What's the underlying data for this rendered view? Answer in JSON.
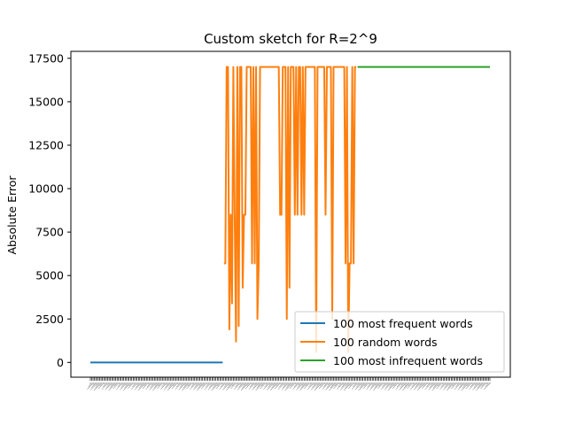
{
  "chart_data": {
    "type": "line",
    "title": "Custom sketch for R=2^9",
    "ylabel": "Absolute Error",
    "xlabel": "",
    "ylim": [
      -850,
      17900
    ],
    "yticks": [
      0,
      2500,
      5000,
      7500,
      10000,
      12500,
      15000,
      17500
    ],
    "grid": false,
    "legend_position": "lower-right",
    "colors": {
      "frequent": "#1f77b4",
      "random": "#ff7f0e",
      "infrequent": "#2ca02c"
    },
    "series": [
      {
        "name": "100 most frequent words",
        "values": [
          0,
          0,
          0,
          0,
          0,
          0,
          0,
          0,
          0,
          0,
          0,
          0,
          0,
          0,
          0,
          0,
          0,
          0,
          0,
          0,
          0,
          0,
          0,
          0,
          0,
          0,
          0,
          0,
          0,
          0,
          0,
          0,
          0,
          0,
          0,
          0,
          0,
          0,
          0,
          0,
          0,
          0,
          0,
          0,
          0,
          0,
          0,
          0,
          0,
          0,
          0,
          0,
          0,
          0,
          0,
          0,
          0,
          0,
          0,
          0,
          0,
          0,
          0,
          0,
          0,
          0,
          0,
          0,
          0,
          0,
          0,
          0,
          0,
          0,
          0,
          0,
          0,
          0,
          0,
          0,
          0,
          0,
          0,
          0,
          0,
          0,
          0,
          0,
          0,
          0,
          0,
          0,
          0,
          0,
          0,
          0,
          0,
          0,
          0,
          0
        ]
      },
      {
        "name": "100 random words",
        "values": [
          5700,
          5700,
          17000,
          17000,
          1900,
          8500,
          3400,
          17000,
          8500,
          1200,
          17000,
          2100,
          17000,
          17000,
          4300,
          8500,
          8500,
          17000,
          17000,
          17000,
          17000,
          5700,
          17000,
          5700,
          17000,
          2500,
          5700,
          17000,
          17000,
          17000,
          17000,
          17000,
          17000,
          17000,
          17000,
          17000,
          17000,
          17000,
          17000,
          17000,
          17000,
          17000,
          8500,
          8500,
          17000,
          17000,
          17000,
          2500,
          17000,
          4300,
          17000,
          17000,
          17000,
          8500,
          17000,
          8500,
          17000,
          17000,
          8500,
          17000,
          8500,
          17000,
          17000,
          17000,
          17000,
          17000,
          17000,
          17000,
          17000,
          600,
          17000,
          17000,
          17000,
          17000,
          17000,
          17000,
          8500,
          17000,
          17000,
          17000,
          17000,
          2500,
          17000,
          17000,
          17000,
          17000,
          17000,
          17000,
          17000,
          17000,
          17000,
          5700,
          17000,
          600,
          5700,
          5700,
          17000,
          5700,
          17000,
          17000
        ]
      },
      {
        "name": "100 most infrequent words",
        "values": [
          17000,
          17000,
          17000,
          17000,
          17000,
          17000,
          17000,
          17000,
          17000,
          17000,
          17000,
          17000,
          17000,
          17000,
          17000,
          17000,
          17000,
          17000,
          17000,
          17000,
          17000,
          17000,
          17000,
          17000,
          17000,
          17000,
          17000,
          17000,
          17000,
          17000,
          17000,
          17000,
          17000,
          17000,
          17000,
          17000,
          17000,
          17000,
          17000,
          17000,
          17000,
          17000,
          17000,
          17000,
          17000,
          17000,
          17000,
          17000,
          17000,
          17000,
          17000,
          17000,
          17000,
          17000,
          17000,
          17000,
          17000,
          17000,
          17000,
          17000,
          17000,
          17000,
          17000,
          17000,
          17000,
          17000,
          17000,
          17000,
          17000,
          17000,
          17000,
          17000,
          17000,
          17000,
          17000,
          17000,
          17000,
          17000,
          17000,
          17000,
          17000,
          17000,
          17000,
          17000,
          17000,
          17000,
          17000,
          17000,
          17000,
          17000,
          17000,
          17000,
          17000,
          17000,
          17000,
          17000,
          17000,
          17000,
          17000,
          17000
        ]
      }
    ]
  }
}
